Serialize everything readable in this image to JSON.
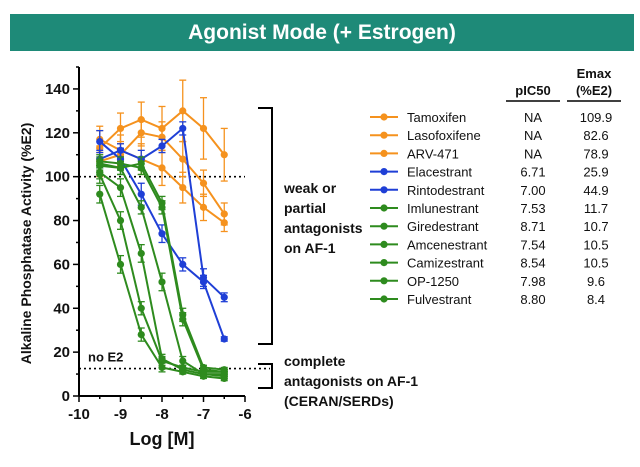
{
  "banner": {
    "title": "Agonist Mode (+ Estrogen)"
  },
  "chart_data": {
    "type": "line",
    "xlabel": "Log [M]",
    "ylabel": "Alkaline Phosphatase Activity (%E2)",
    "xlim": [
      -10,
      -6
    ],
    "ylim": [
      0,
      150
    ],
    "xticks": [
      -10,
      -9,
      -8,
      -7,
      -6
    ],
    "yticks": [
      0,
      20,
      40,
      60,
      80,
      100,
      120,
      140
    ],
    "reference_lines": [
      {
        "y": 100
      },
      {
        "y": 12.5,
        "label": "no E2"
      }
    ],
    "table_headers": {
      "pic50": "pIC50",
      "emax_line1": "Emax",
      "emax_line2": "(%E2)"
    },
    "series": [
      {
        "name": "Tamoxifen",
        "color": "#f5921e",
        "pIC50": "NA",
        "Emax": "109.9",
        "x": [
          -9.5,
          -9,
          -8.5,
          -8,
          -7.5,
          -7,
          -6.5
        ],
        "y": [
          113,
          122,
          126,
          122,
          130,
          122,
          110
        ],
        "err": [
          8,
          7,
          8,
          10,
          14,
          14,
          12
        ]
      },
      {
        "name": "Lasofoxifene",
        "color": "#f5921e",
        "pIC50": "NA",
        "Emax": "82.6",
        "x": [
          -9.5,
          -9,
          -8.5,
          -8,
          -7.5,
          -7,
          -6.5
        ],
        "y": [
          117,
          112,
          108,
          104,
          95,
          86,
          79
        ],
        "err": [
          6,
          7,
          7,
          8,
          7,
          6,
          4
        ]
      },
      {
        "name": "ARV-471",
        "color": "#f5921e",
        "pIC50": "NA",
        "Emax": "78.9",
        "x": [
          -9.5,
          -9,
          -8.5,
          -8,
          -7.5,
          -7,
          -6.5
        ],
        "y": [
          107,
          110,
          120,
          118,
          108,
          97,
          83
        ],
        "err": [
          7,
          6,
          6,
          7,
          8,
          6,
          5
        ]
      },
      {
        "name": "Elacestrant",
        "color": "#1f3fd6",
        "pIC50": "6.71",
        "Emax": "25.9",
        "x": [
          -9.5,
          -9,
          -8.5,
          -8,
          -7.5,
          -7,
          -6.5
        ],
        "y": [
          116,
          108,
          92,
          74,
          60,
          52,
          26
        ],
        "err": [
          5,
          5,
          5,
          4,
          3,
          3,
          1
        ]
      },
      {
        "name": "Rintodestrant",
        "color": "#1f3fd6",
        "pIC50": "7.00",
        "Emax": "44.9",
        "x": [
          -9.5,
          -9,
          -8.5,
          -8,
          -7.5,
          -7,
          -6.5
        ],
        "y": [
          108,
          112,
          108,
          114,
          122,
          54,
          45
        ],
        "err": [
          4,
          3,
          4,
          3,
          3,
          4,
          2
        ]
      },
      {
        "name": "Imlunestrant",
        "color": "#2e8b1e",
        "pIC50": "7.53",
        "Emax": "11.7",
        "x": [
          -9.5,
          -9,
          -8.5,
          -8,
          -7.5,
          -7,
          -6.5
        ],
        "y": [
          105,
          104,
          106,
          88,
          37,
          13,
          12
        ],
        "err": [
          3,
          3,
          3,
          3,
          3,
          1,
          1
        ]
      },
      {
        "name": "Giredestrant",
        "color": "#2e8b1e",
        "pIC50": "8.71",
        "Emax": "10.7",
        "x": [
          -9.5,
          -9,
          -8.5,
          -8,
          -7.5,
          -7,
          -6.5
        ],
        "y": [
          101,
          80,
          40,
          16,
          13,
          11,
          11
        ],
        "err": [
          4,
          4,
          3,
          2,
          1,
          1,
          1
        ]
      },
      {
        "name": "Amcenestrant",
        "color": "#2e8b1e",
        "pIC50": "7.54",
        "Emax": "10.5",
        "x": [
          -9.5,
          -9,
          -8.5,
          -8,
          -7.5,
          -7,
          -6.5
        ],
        "y": [
          107,
          106,
          104,
          86,
          35,
          12,
          11
        ],
        "err": [
          3,
          3,
          3,
          3,
          3,
          1,
          1
        ]
      },
      {
        "name": "Camizestrant",
        "color": "#2e8b1e",
        "pIC50": "8.54",
        "Emax": "10.5",
        "x": [
          -9.5,
          -9,
          -8.5,
          -8,
          -7.5,
          -7,
          -6.5
        ],
        "y": [
          102,
          95,
          65,
          17,
          12,
          10,
          10
        ],
        "err": [
          3,
          4,
          4,
          2,
          1,
          1,
          1
        ]
      },
      {
        "name": "OP-1250",
        "color": "#2e8b1e",
        "pIC50": "7.98",
        "Emax": "9.6",
        "x": [
          -9.5,
          -9,
          -8.5,
          -8,
          -7.5,
          -7,
          -6.5
        ],
        "y": [
          106,
          104,
          86,
          52,
          16,
          10,
          9
        ],
        "err": [
          3,
          3,
          3,
          4,
          2,
          1,
          1
        ]
      },
      {
        "name": "Fulvestrant",
        "color": "#2e8b1e",
        "pIC50": "8.80",
        "Emax": "8.4",
        "x": [
          -9.5,
          -9,
          -8.5,
          -8,
          -7.5,
          -7,
          -6.5
        ],
        "y": [
          92,
          60,
          28,
          13,
          11,
          9,
          8
        ],
        "err": [
          4,
          4,
          3,
          2,
          1,
          1,
          1
        ]
      }
    ],
    "annotations": {
      "weak": [
        "weak or",
        "partial",
        "antagonists",
        "on AF-1"
      ],
      "complete": [
        "complete",
        "antagonists on AF-1",
        "(CERAN/SERDs)"
      ]
    }
  }
}
